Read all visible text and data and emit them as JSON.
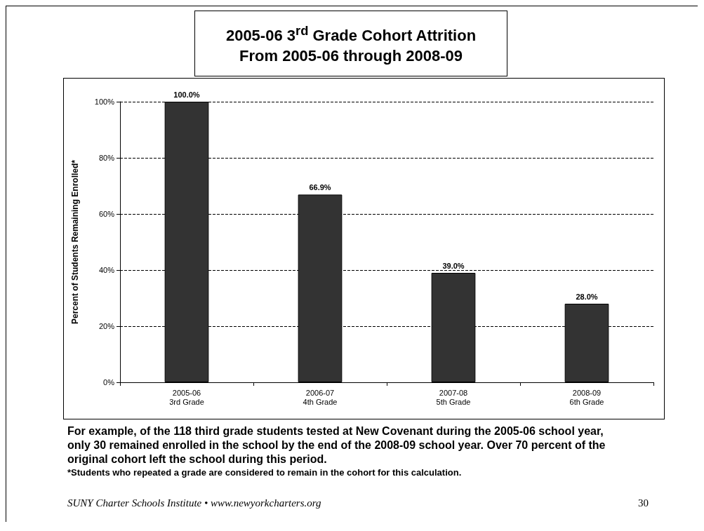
{
  "chart_data": {
    "type": "bar",
    "title": "2005-06 3$^{rd}$ Grade Cohort Attrition\nFrom 2005-06 through 2008-09",
    "ylabel": "Percent of Students Remaining Enrolled*",
    "categories": [
      "2005-06\n3rd Grade",
      "2006-07\n4th Grade",
      "2007-08\n5th Grade",
      "2008-09\n6th Grade"
    ],
    "values": [
      100,
      66.9,
      39,
      28
    ],
    "value_labels": [
      "100.0%",
      "66.9%",
      "39.0%",
      "28.0%"
    ],
    "color": "#333333",
    "ylim": [
      0,
      100
    ],
    "yticks": [
      {
        "value": 0,
        "label": "0%"
      },
      {
        "value": 20,
        "label": "20%"
      },
      {
        "value": 40,
        "label": "40%"
      },
      {
        "value": 60,
        "label": "60%"
      },
      {
        "value": 80,
        "label": "80%"
      },
      {
        "value": 100,
        "label": "100%"
      }
    ],
    "grid": "y",
    "annotations": [
      "For example, of the 118 third grade students tested at New Covenant during the 2005-06 school year, only 30 remained enrolled in the school by the end of the 2008-09 school year.   Over 70 percent of the original cohort left the school during this period.",
      "*Students who repeated a grade are considered to remain in the cohort for this calculation.",
      "SUNY Charter Schools Institute  •  www.newyorkcharters.org",
      "30"
    ]
  }
}
